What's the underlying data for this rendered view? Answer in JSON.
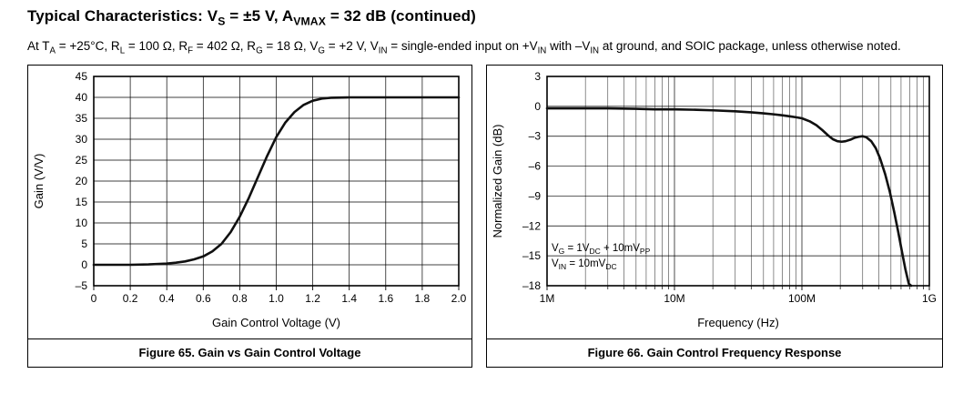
{
  "page": {
    "title": [
      {
        "t": "Typical Characteristics: V"
      },
      {
        "s": "S"
      },
      {
        "t": " = ±5 V, A"
      },
      {
        "s": "VMAX"
      },
      {
        "t": " = 32 dB (continued)"
      }
    ],
    "conditions": [
      {
        "t": "At T"
      },
      {
        "s": "A"
      },
      {
        "t": " = +25°C, R"
      },
      {
        "s": "L"
      },
      {
        "t": " = 100 Ω, R"
      },
      {
        "s": "F"
      },
      {
        "t": " = 402 Ω, R"
      },
      {
        "s": "G"
      },
      {
        "t": " = 18 Ω, V"
      },
      {
        "s": "G"
      },
      {
        "t": " = +2 V, V"
      },
      {
        "s": "IN"
      },
      {
        "t": " = single-ended input on +V"
      },
      {
        "s": "IN"
      },
      {
        "t": " with –V"
      },
      {
        "s": "IN"
      },
      {
        "t": " at ground, and SOIC package, unless otherwise noted."
      }
    ]
  },
  "chart_data": [
    {
      "type": "line",
      "caption": "Figure 65. Gain vs Gain Control Voltage",
      "xlabel": "Gain Control Voltage (V)",
      "ylabel": "Gain (V/V)",
      "x_scale": "linear",
      "xlim": [
        0,
        2
      ],
      "ylim": [
        -5,
        45
      ],
      "grid": true,
      "legend": "none",
      "x_ticks": [
        0,
        0.2,
        0.4,
        0.6,
        0.8,
        1,
        1.2,
        1.4,
        1.6,
        1.8,
        2
      ],
      "x_tick_labels": [
        "0",
        "0.2",
        "0.4",
        "0.6",
        "0.8",
        "1.0",
        "1.2",
        "1.4",
        "1.6",
        "1.8",
        "2.0"
      ],
      "y_ticks": [
        -5,
        0,
        5,
        10,
        15,
        20,
        25,
        30,
        35,
        40,
        45
      ],
      "y_tick_labels": [
        "–5",
        "0",
        "5",
        "10",
        "15",
        "20",
        "25",
        "30",
        "35",
        "40",
        "45"
      ],
      "series": [
        {
          "name": "gain",
          "x": [
            0,
            0.1,
            0.2,
            0.3,
            0.4,
            0.45,
            0.5,
            0.55,
            0.6,
            0.65,
            0.7,
            0.75,
            0.8,
            0.85,
            0.9,
            0.95,
            1.0,
            1.05,
            1.1,
            1.15,
            1.2,
            1.25,
            1.3,
            1.4,
            1.5,
            1.6,
            1.8,
            2.0
          ],
          "y": [
            0,
            0,
            0,
            0.1,
            0.3,
            0.5,
            0.8,
            1.3,
            2.0,
            3.2,
            5.0,
            7.8,
            11.5,
            16.0,
            21.0,
            26.0,
            30.5,
            34.0,
            36.5,
            38.2,
            39.2,
            39.7,
            39.9,
            40.0,
            40.0,
            40.0,
            40.0,
            40.0
          ]
        }
      ]
    },
    {
      "type": "line",
      "caption": "Figure 66. Gain Control Frequency Response",
      "xlabel": "Frequency (Hz)",
      "ylabel": "Normalized Gain (dB)",
      "x_scale": "log",
      "xlim": [
        1000000.0,
        1000000000.0
      ],
      "ylim": [
        -18,
        3
      ],
      "grid": true,
      "legend": "none",
      "x_ticks": [
        1000000.0,
        10000000.0,
        100000000.0,
        1000000000.0
      ],
      "x_tick_labels": [
        "1M",
        "10M",
        "100M",
        "1G"
      ],
      "y_ticks": [
        3,
        0,
        -3,
        -6,
        -9,
        -12,
        -15,
        -18
      ],
      "y_tick_labels": [
        "3",
        "0",
        "–3",
        "–6",
        "–9",
        "–12",
        "–15",
        "–18"
      ],
      "annotation": [
        [
          {
            "t": "V"
          },
          {
            "s": "G"
          },
          {
            "t": " = 1V"
          },
          {
            "s": "DC"
          },
          {
            "t": " + 10mV"
          },
          {
            "s": "PP"
          }
        ],
        [
          {
            "t": "V"
          },
          {
            "s": "IN"
          },
          {
            "t": " = 10mV"
          },
          {
            "s": "DC"
          }
        ]
      ],
      "series": [
        {
          "name": "normalized-gain",
          "x": [
            1000000.0,
            1500000.0,
            2000000.0,
            3000000.0,
            5000000.0,
            7000000.0,
            10000000.0,
            15000000.0,
            20000000.0,
            30000000.0,
            40000000.0,
            50000000.0,
            60000000.0,
            70000000.0,
            80000000.0,
            90000000.0,
            100000000.0,
            115000000.0,
            130000000.0,
            145000000.0,
            160000000.0,
            175000000.0,
            190000000.0,
            205000000.0,
            220000000.0,
            240000000.0,
            260000000.0,
            280000000.0,
            300000000.0,
            320000000.0,
            350000000.0,
            380000000.0,
            410000000.0,
            450000000.0,
            490000000.0,
            530000000.0,
            570000000.0,
            610000000.0,
            650000000.0,
            690000000.0,
            720000000.0
          ],
          "y": [
            -0.2,
            -0.2,
            -0.2,
            -0.2,
            -0.25,
            -0.3,
            -0.3,
            -0.35,
            -0.4,
            -0.5,
            -0.6,
            -0.7,
            -0.8,
            -0.9,
            -1.0,
            -1.1,
            -1.2,
            -1.5,
            -1.9,
            -2.4,
            -2.9,
            -3.3,
            -3.5,
            -3.55,
            -3.5,
            -3.35,
            -3.15,
            -3.05,
            -3.0,
            -3.1,
            -3.5,
            -4.2,
            -5.2,
            -6.8,
            -8.6,
            -10.6,
            -12.6,
            -14.6,
            -16.4,
            -17.8,
            -18.0
          ]
        }
      ]
    }
  ]
}
